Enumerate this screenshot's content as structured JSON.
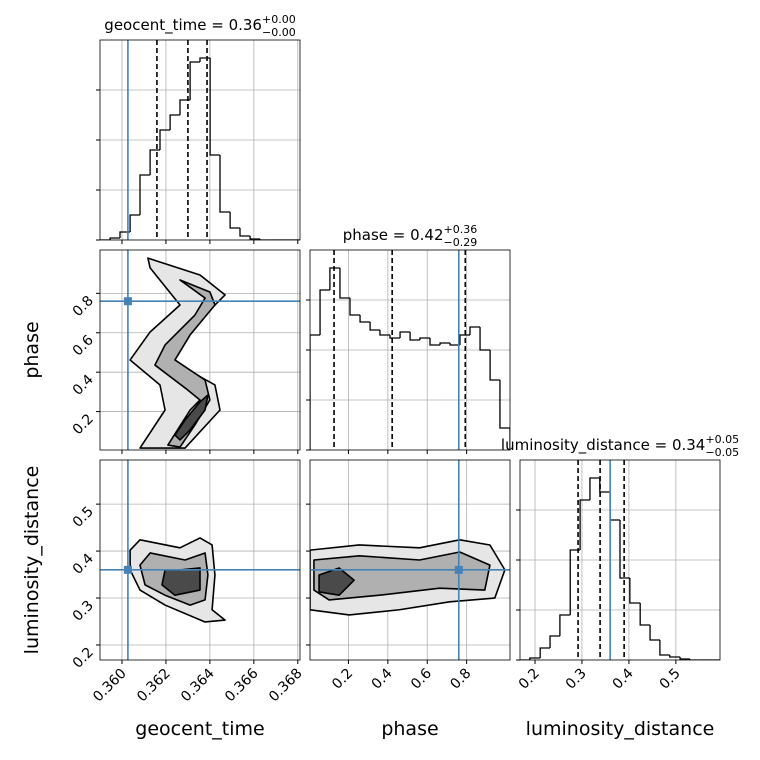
{
  "chart_data": {
    "type": "corner",
    "grid": true,
    "hist_color": "#000000",
    "truth_color": "#4682b4",
    "contour_fills": [
      "#e6e6e6",
      "#b0b0b0",
      "#4a4a4a"
    ],
    "parameters": [
      {
        "label": "geocent_time",
        "title": "geocent_time = 0.36",
        "title_upper": "+0.00",
        "title_lower": "−0.00",
        "lim": [
          0.359,
          0.3681
        ],
        "ticks": [
          {
            "value": 0.36,
            "label": "0.360"
          },
          0.362,
          0.364,
          0.366,
          0.368
        ],
        "truth": 0.36027,
        "quantiles": [
          0.36159,
          0.363,
          0.36387
        ],
        "bins": [
          0.359,
          0.35946,
          0.35991,
          0.36037,
          0.36082,
          0.36128,
          0.36173,
          0.36219,
          0.36264,
          0.3631,
          0.36355,
          0.36401,
          0.36446,
          0.36492,
          0.36537,
          0.36583,
          0.36628,
          0.36674,
          0.36719,
          0.36765,
          0.3681
        ],
        "counts": [
          0,
          2,
          8,
          25,
          65,
          90,
          110,
          125,
          140,
          178,
          182,
          85,
          28,
          12,
          4,
          1,
          0,
          0,
          0,
          0
        ],
        "hist_ylim": [
          0,
          200
        ],
        "hist_yticks": [
          0,
          50,
          100,
          150
        ]
      },
      {
        "label": "phase",
        "title": "phase = 0.42",
        "title_upper": "+0.36",
        "title_lower": "−0.29",
        "lim": [
          0.005,
          1.02
        ],
        "ticks": [
          0.2,
          0.4,
          0.6,
          0.8
        ],
        "truth": 0.76,
        "quantiles": [
          0.127,
          0.422,
          0.793
        ],
        "bins": [
          0.005,
          0.056,
          0.106,
          0.157,
          0.208,
          0.259,
          0.31,
          0.36,
          0.411,
          0.462,
          0.513,
          0.563,
          0.614,
          0.665,
          0.716,
          0.766,
          0.817,
          0.868,
          0.919,
          0.969,
          1.02
        ],
        "counts": [
          115,
          160,
          182,
          152,
          135,
          128,
          120,
          115,
          112,
          118,
          110,
          112,
          105,
          107,
          105,
          115,
          123,
          100,
          70,
          22
        ],
        "hist_ylim": [
          0,
          200
        ],
        "hist_yticks": [
          0,
          50,
          100,
          150
        ]
      },
      {
        "label": "luminosity_distance",
        "title": "luminosity_distance = 0.34",
        "title_upper": "+0.05",
        "title_lower": "−0.05",
        "lim": [
          0.168,
          0.594
        ],
        "ticks": [
          0.2,
          0.3,
          0.4,
          0.5
        ],
        "truth": 0.36,
        "quantiles": [
          0.2917,
          0.3386,
          0.3898
        ],
        "bins": [
          0.168,
          0.189,
          0.211,
          0.232,
          0.253,
          0.275,
          0.296,
          0.317,
          0.338,
          0.36,
          0.381,
          0.402,
          0.424,
          0.445,
          0.466,
          0.487,
          0.509,
          0.53,
          0.551,
          0.573,
          0.594
        ],
        "counts": [
          0,
          2,
          12,
          24,
          45,
          110,
          160,
          182,
          168,
          140,
          82,
          57,
          35,
          20,
          5,
          3,
          1,
          0,
          0,
          0
        ],
        "hist_ylim": [
          0,
          200
        ],
        "hist_yticks": [
          0,
          50,
          100,
          150
        ]
      }
    ],
    "pairs": [
      [
        {
          "contours": [
            {
              "x": [
                0.36082,
                0.36196,
                0.36173,
                0.36037,
                0.36128,
                0.36264,
                0.36128,
                0.36118,
                0.36355,
                0.36469,
                0.36332,
                0.36219,
                0.36423,
                0.36446,
                0.36287
              ],
              "y": [
                0.015,
                0.208,
                0.335,
                0.462,
                0.604,
                0.741,
                0.929,
                0.979,
                0.893,
                0.792,
                0.639,
                0.462,
                0.335,
                0.208,
                0.015
              ]
            },
            {
              "x": [
                0.36209,
                0.3631,
                0.36355,
                0.36287,
                0.3615,
                0.36196,
                0.36332,
                0.36378,
                0.36264,
                0.364,
                0.36423,
                0.3631,
                0.36241,
                0.36378,
                0.364,
                0.36332,
                0.36264
              ],
              "y": [
                0.03,
                0.208,
                0.259,
                0.32,
                0.436,
                0.538,
                0.69,
                0.776,
                0.868,
                0.807,
                0.741,
                0.589,
                0.462,
                0.36,
                0.259,
                0.132,
                0.02
              ]
            },
            {
              "x": [
                0.36241,
                0.36287,
                0.36355,
                0.36391,
                0.36378,
                0.3631,
                0.36264
              ],
              "y": [
                0.081,
                0.157,
                0.249,
                0.284,
                0.208,
                0.107,
                0.056
              ]
            }
          ]
        }
      ],
      [
        {
          "contours": [
            {
              "x": [
                0.36037,
                0.36082,
                0.36264,
                0.36355,
                0.3641,
                0.36423,
                0.3641,
                0.36469,
                0.36378,
                0.36196,
                0.36082,
                0.36037
              ],
              "y": [
                0.402,
                0.424,
                0.407,
                0.428,
                0.413,
                0.349,
                0.275,
                0.253,
                0.249,
                0.285,
                0.317,
                0.36
              ]
            },
            {
              "x": [
                0.36082,
                0.36128,
                0.36287,
                0.36378,
                0.36391,
                0.36378,
                0.3631,
                0.36196,
                0.36105
              ],
              "y": [
                0.37,
                0.396,
                0.381,
                0.396,
                0.349,
                0.296,
                0.285,
                0.306,
                0.328
              ]
            },
            {
              "x": [
                0.36196,
                0.36264,
                0.36355,
                0.36355,
                0.36241,
                0.36182
              ],
              "y": [
                0.36,
                0.36,
                0.364,
                0.317,
                0.306,
                0.328
              ]
            }
          ]
        },
        {
          "contours": [
            {
              "x": [
                0.005,
                0.255,
                0.561,
                0.765,
                0.918,
                0.994,
                0.943,
                0.714,
                0.459,
                0.204,
                0.005
              ],
              "y": [
                0.402,
                0.413,
                0.407,
                0.424,
                0.413,
                0.36,
                0.3,
                0.292,
                0.275,
                0.264,
                0.275
              ]
            },
            {
              "x": [
                0.025,
                0.255,
                0.561,
                0.765,
                0.918,
                0.892,
                0.663,
                0.357,
                0.102,
                0.025
              ],
              "y": [
                0.381,
                0.39,
                0.381,
                0.398,
                0.37,
                0.317,
                0.321,
                0.306,
                0.296,
                0.317
              ]
            },
            {
              "x": [
                0.051,
                0.153,
                0.229,
                0.153,
                0.051
              ],
              "y": [
                0.349,
                0.364,
                0.338,
                0.306,
                0.313
              ]
            }
          ]
        }
      ]
    ]
  }
}
